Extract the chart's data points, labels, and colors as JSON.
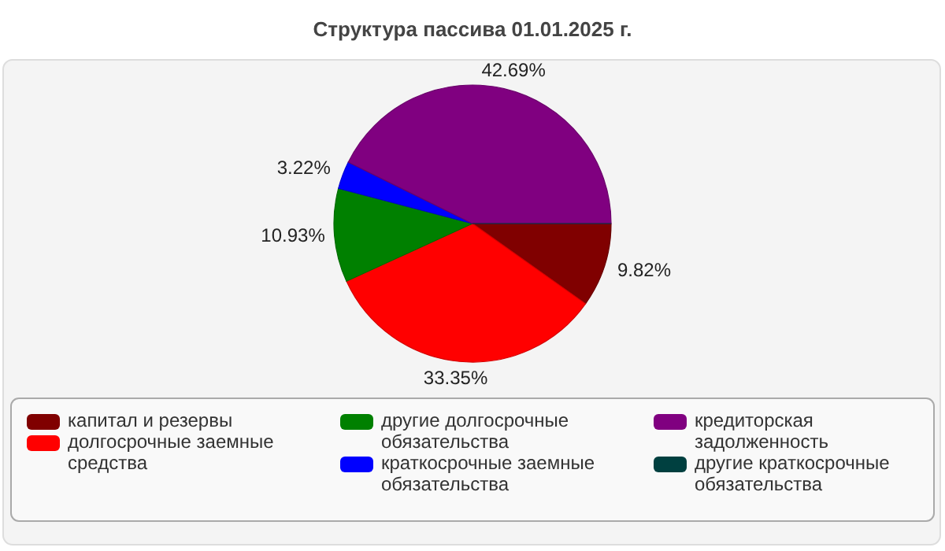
{
  "chart_data": {
    "type": "pie",
    "title": "Структура пассива 01.01.2025 г.",
    "categories": [
      "капитал и резервы",
      "долгосрочные заемные средства",
      "другие долгосрочные обязательства",
      "краткосрочные заемные обязательства",
      "кредиторская задолженность",
      "другие краткосрочные обязательства"
    ],
    "values": [
      9.82,
      33.35,
      10.93,
      3.22,
      42.69,
      0
    ],
    "colors": [
      "#800000",
      "#ff0000",
      "#008000",
      "#0000ff",
      "#800080",
      "#004040"
    ],
    "value_labels": [
      "9.82%",
      "33.35%",
      "10.93%",
      "3.22%",
      "42.69%",
      null
    ],
    "legend": "bottom"
  }
}
